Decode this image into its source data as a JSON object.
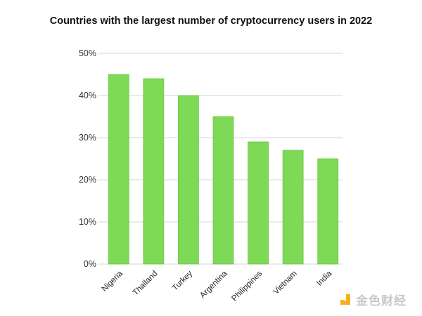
{
  "chart_data": {
    "type": "bar",
    "title": "Countries with the largest number of cryptocurrency users in 2022",
    "categories": [
      "Nigeria",
      "Thailand",
      "Turkey",
      "Argentina",
      "Philippines",
      "Vietnam",
      "India"
    ],
    "values": [
      45,
      44,
      40,
      35,
      29,
      27,
      25
    ],
    "unit": "%",
    "xlabel": "",
    "ylabel": "",
    "ylim": [
      0,
      50
    ],
    "yticks": [
      "0%",
      "10%",
      "20%",
      "30%",
      "40%",
      "50%"
    ],
    "grid": true,
    "bar_color": "#7ed957"
  },
  "watermark": "金色财经"
}
